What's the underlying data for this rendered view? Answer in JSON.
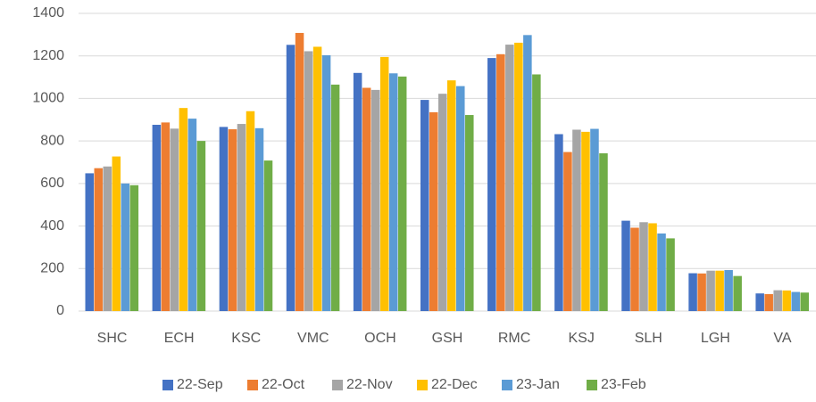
{
  "chart_data": {
    "type": "bar",
    "categories": [
      "SHC",
      "ECH",
      "KSC",
      "VMC",
      "OCH",
      "GSH",
      "RMC",
      "KSJ",
      "SLH",
      "LGH",
      "VA"
    ],
    "series": [
      {
        "name": "22-Sep",
        "color": "#4472c4",
        "values": [
          648,
          876,
          866,
          1252,
          1120,
          993,
          1190,
          832,
          425,
          178,
          83
        ]
      },
      {
        "name": "22-Oct",
        "color": "#ed7d31",
        "values": [
          672,
          887,
          855,
          1308,
          1050,
          935,
          1208,
          748,
          392,
          177,
          80
        ]
      },
      {
        "name": "22-Nov",
        "color": "#a5a5a5",
        "values": [
          680,
          858,
          880,
          1222,
          1040,
          1022,
          1253,
          853,
          418,
          190,
          98
        ]
      },
      {
        "name": "22-Dec",
        "color": "#ffc000",
        "values": [
          727,
          955,
          940,
          1243,
          1195,
          1085,
          1262,
          843,
          413,
          190,
          97
        ]
      },
      {
        "name": "23-Jan",
        "color": "#5b9bd5",
        "values": [
          600,
          905,
          860,
          1203,
          1118,
          1058,
          1298,
          857,
          365,
          193,
          90
        ]
      },
      {
        "name": "23-Feb",
        "color": "#70ad47",
        "values": [
          592,
          800,
          708,
          1065,
          1103,
          922,
          1113,
          742,
          342,
          165,
          87
        ]
      }
    ],
    "ylim": [
      0,
      1400
    ],
    "yticks": [
      0,
      200,
      400,
      600,
      800,
      1000,
      1200,
      1400
    ],
    "grid": true,
    "legend": "bottom"
  }
}
